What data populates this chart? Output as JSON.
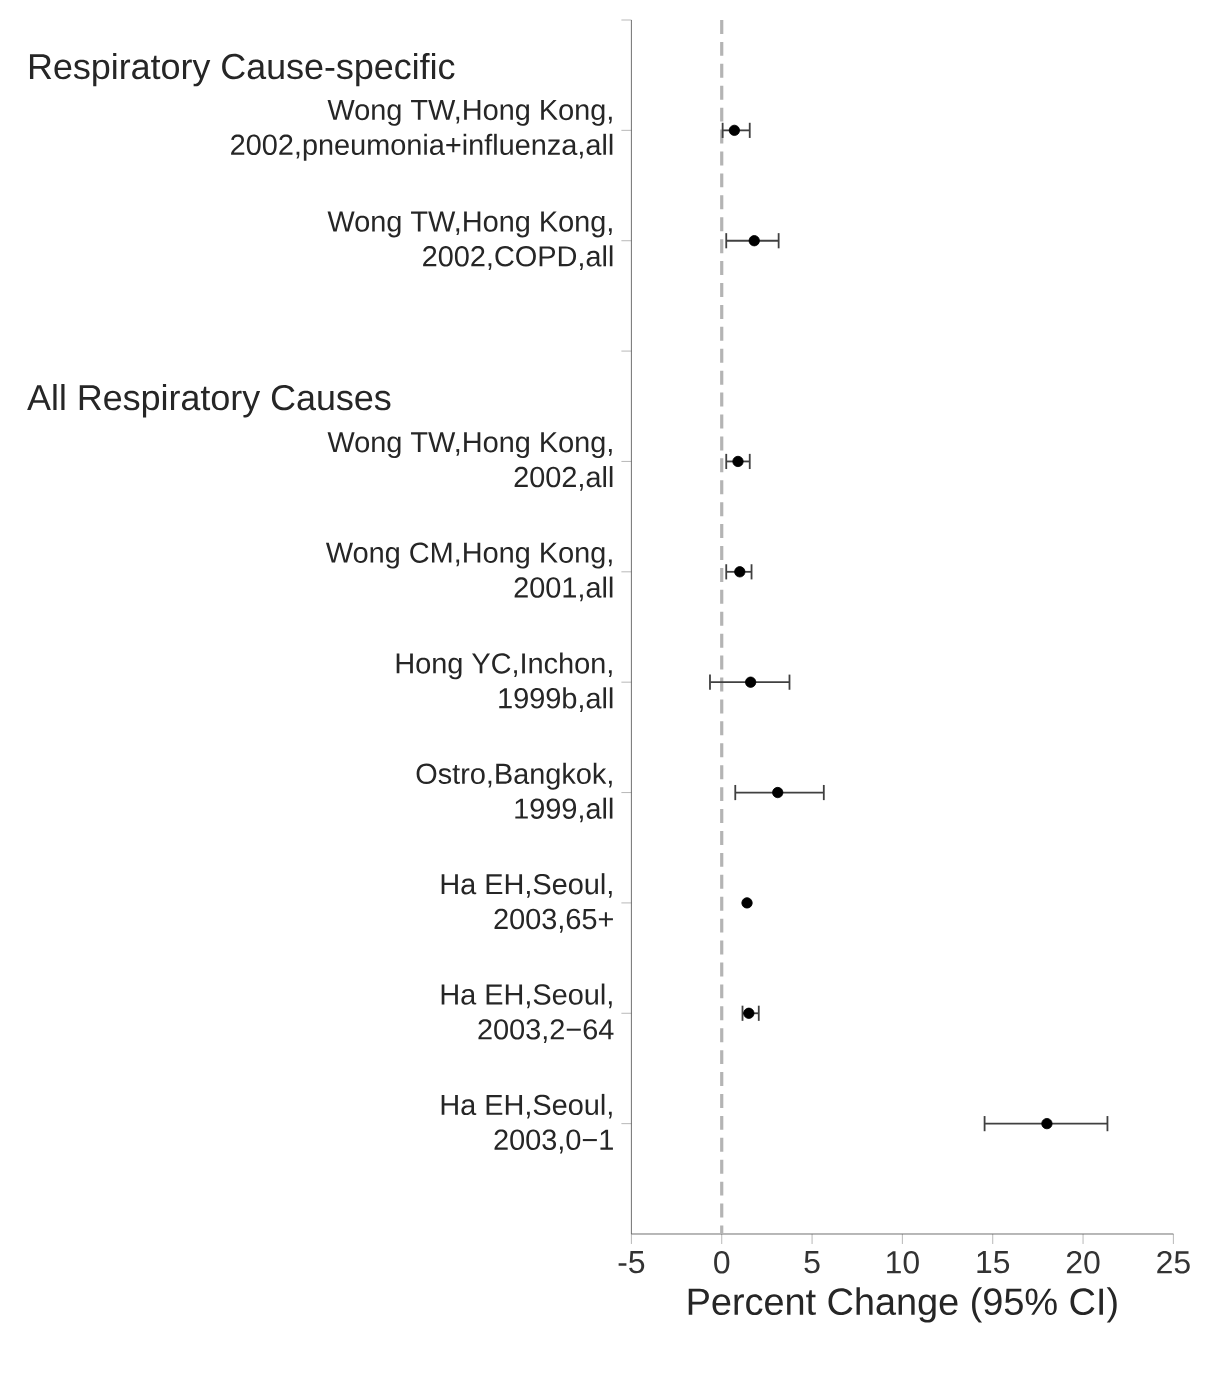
{
  "chart_data": {
    "type": "scatter",
    "orientation": "horizontal",
    "categories": [
      null,
      "Wong TW,Hong Kong,\n2002,pneumonia+influenza,all",
      "Wong TW,Hong Kong,\n2002,COPD,all",
      null,
      "Wong TW,Hong Kong,\n2002,all",
      "Wong CM,Hong Kong,\n2001,all",
      "Hong YC,Inchon,\n1999b,all",
      "Ostro,Bangkok,\n1999,all",
      "Ha EH,Seoul,\n2003,65+",
      "Ha EH,Seoul,\n2003,2−64",
      "Ha EH,Seoul,\n2003,0−1"
    ],
    "values": [
      null,
      0.7,
      1.8,
      null,
      0.9,
      1.0,
      1.6,
      3.1,
      1.4,
      1.5,
      18.0
    ],
    "errors": [
      null,
      [
        0.0,
        1.6
      ],
      [
        0.2,
        3.2
      ],
      null,
      [
        0.2,
        1.6
      ],
      [
        0.2,
        1.7
      ],
      [
        -0.7,
        3.8
      ],
      [
        0.7,
        5.7
      ],
      null,
      [
        1.1,
        2.1
      ],
      [
        14.5,
        21.4
      ]
    ],
    "color": "#000000",
    "marker": "circle",
    "xlim": [
      -5,
      25
    ],
    "xticks": [
      -5,
      0,
      5,
      10,
      15,
      20,
      25
    ],
    "xlabel": "Percent Change (95% CI)",
    "ref_lines": [
      {
        "axis": "x",
        "value": 0,
        "color": "#b4b4b4",
        "line_style": "dashed"
      }
    ],
    "annotations": [
      "Respiratory Cause-specific",
      "All Respiratory Causes"
    ]
  }
}
